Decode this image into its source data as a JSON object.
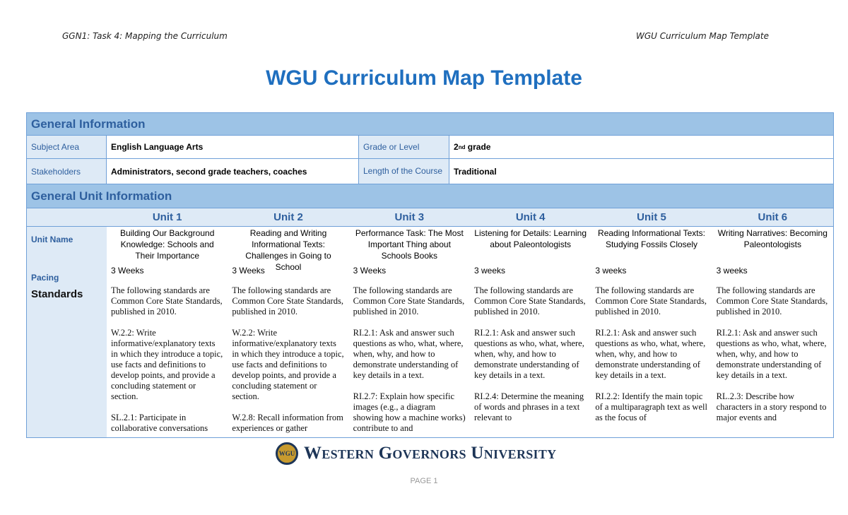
{
  "header": {
    "left": "GGN1: Task 4: Mapping the Curriculum",
    "right": "WGU Curriculum Map Template"
  },
  "title": "WGU Curriculum Map Template",
  "general": {
    "heading": "General Information",
    "subject_label": "Subject Area",
    "subject": "English Language Arts",
    "grade_label": "Grade or Level",
    "grade": "2",
    "grade_sup": "nd",
    "grade_suffix": " grade",
    "stakeholders_label": "Stakeholders",
    "stakeholders": "Administrators, second grade teachers, coaches",
    "length_label": "Length of the Course",
    "length": "Traditional"
  },
  "unit_info": {
    "heading": "General Unit Information",
    "unit_name_label": "Unit Name",
    "pacing_label": "Pacing",
    "standards_label": "Standards",
    "units": [
      {
        "label": "Unit 1",
        "name": "Building Our Background Knowledge: Schools and Their Importance",
        "pacing": "3 Weeks",
        "standards": [
          "The following standards are Common Core State Standards, published in 2010.",
          "W.2.2: Write informative/explanatory texts in which they introduce a topic, use facts and definitions to develop points, and provide a concluding statement or section.",
          "SL.2.1: Participate in collaborative conversations"
        ]
      },
      {
        "label": "Unit 2",
        "name": "Reading and Writing Informational Texts: Challenges in Going to School",
        "pacing": "3 Weeks",
        "standards": [
          "The following standards are Common Core State Standards, published in 2010.",
          "W.2.2: Write informative/explanatory texts in which they introduce a topic, use facts and definitions to develop points, and provide a concluding statement or section.",
          "W.2.8: Recall information from experiences or gather"
        ]
      },
      {
        "label": "Unit 3",
        "name": "Performance Task: The Most Important Thing about Schools Books",
        "pacing": "3 Weeks",
        "standards": [
          "The following standards are Common Core State Standards, published in 2010.",
          "RI.2.1: Ask and answer such questions as who, what, where, when, why, and how to demonstrate understanding of key details in a text.",
          "RI.2.7: Explain how specific images (e.g., a diagram showing how a machine works) contribute to and"
        ]
      },
      {
        "label": "Unit 4",
        "name": "Listening for Details: Learning about Paleontologists",
        "pacing": "3 weeks",
        "standards": [
          "The following standards are Common Core State Standards, published in 2010.",
          "RI.2.1: Ask and answer such questions as who, what, where, when, why, and how to demonstrate understanding of key details in a text.",
          "RI.2.4: Determine the meaning of words and phrases in a text relevant to"
        ]
      },
      {
        "label": "Unit 5",
        "name": "Reading Informational Texts: Studying Fossils Closely",
        "pacing": "3 weeks",
        "standards": [
          "The following standards are Common Core State Standards, published in 2010.",
          "RI.2.1: Ask and answer such questions as who, what, where, when, why, and how to demonstrate understanding of key details in a text.",
          "RI.2.2: Identify the main topic of a multiparagraph text as well as the focus of"
        ]
      },
      {
        "label": "Unit 6",
        "name": "Writing Narratives: Becoming Paleontologists",
        "pacing": "3 weeks",
        "standards": [
          "The following standards are Common Core State Standards, published in 2010.",
          "RI.2.1: Ask and answer such questions as who, what, where, when, why, and how to demonstrate understanding of key details in a text.",
          "RL.2.3: Describe how characters in a story respond to major events and"
        ]
      }
    ]
  },
  "footer": {
    "logo_text": "Western Governors University",
    "seal_text": "WGU",
    "page": "PAGE 1"
  },
  "colors": {
    "title": "#1f6fbf",
    "section_bg": "#9dc3e6",
    "label_bg": "#deeaf6",
    "border": "#6fa0d8"
  }
}
